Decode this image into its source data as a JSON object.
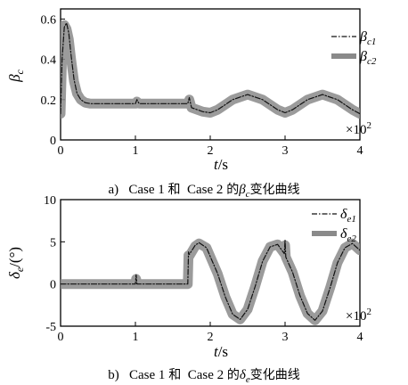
{
  "chart_data": [
    {
      "type": "line",
      "panel": "a",
      "ylabel": "β_c",
      "ylabel_main": "β",
      "ylabel_sub": "c",
      "xlabel": "t/s",
      "xlabel_var": "t",
      "xlabel_unit": "/s",
      "x_multiplier": "×10²",
      "x_multiplier_base": "×10",
      "x_multiplier_exp": "2",
      "xlim": [
        0,
        4
      ],
      "ylim": [
        0,
        0.65
      ],
      "xticks": [
        0,
        1,
        2,
        3,
        4
      ],
      "xtick_labels": [
        "0",
        "1",
        "2",
        "3",
        "4"
      ],
      "yticks": [
        0,
        0.2,
        0.4,
        0.6
      ],
      "ytick_labels": [
        "0",
        "0.2",
        "0.4",
        "0.6"
      ],
      "legend_position": "right",
      "caption": {
        "label": "a)",
        "case1": "Case 1",
        "and": "和",
        "case2": "Case 2",
        "of": "的",
        "symbol": "β",
        "symbol_sub": "c",
        "suffix": "变化曲线"
      },
      "series": [
        {
          "name": "β_c1",
          "name_main": "β",
          "name_sub": "c1",
          "style": "dash-dot",
          "color": "#111111",
          "x": [
            0,
            0.02,
            0.05,
            0.08,
            0.11,
            0.14,
            0.18,
            0.22,
            0.27,
            0.33,
            0.4,
            0.5,
            0.6,
            0.8,
            1.0,
            1.02,
            1.05,
            1.2,
            1.5,
            1.7,
            1.72,
            1.75,
            1.9,
            2.0,
            2.1,
            2.3,
            2.5,
            2.7,
            2.9,
            3.0,
            3.1,
            3.3,
            3.5,
            3.7,
            3.9,
            4.0
          ],
          "y": [
            0.13,
            0.4,
            0.56,
            0.58,
            0.53,
            0.42,
            0.3,
            0.23,
            0.2,
            0.185,
            0.18,
            0.18,
            0.18,
            0.18,
            0.18,
            0.2,
            0.18,
            0.18,
            0.18,
            0.18,
            0.21,
            0.16,
            0.14,
            0.135,
            0.15,
            0.2,
            0.225,
            0.2,
            0.15,
            0.135,
            0.15,
            0.2,
            0.225,
            0.2,
            0.15,
            0.13
          ]
        },
        {
          "name": "β_c2",
          "name_main": "β",
          "name_sub": "c2",
          "style": "thick-band",
          "color": "#8a8a8a",
          "x": [
            0,
            0.02,
            0.05,
            0.08,
            0.11,
            0.14,
            0.18,
            0.22,
            0.27,
            0.33,
            0.4,
            0.5,
            0.6,
            0.8,
            1.0,
            1.02,
            1.05,
            1.2,
            1.5,
            1.7,
            1.72,
            1.75,
            1.9,
            2.0,
            2.1,
            2.3,
            2.5,
            2.7,
            2.9,
            3.0,
            3.1,
            3.3,
            3.5,
            3.7,
            3.9,
            4.0
          ],
          "y": [
            0.13,
            0.42,
            0.57,
            0.55,
            0.5,
            0.4,
            0.29,
            0.23,
            0.2,
            0.185,
            0.18,
            0.18,
            0.18,
            0.18,
            0.18,
            0.19,
            0.18,
            0.18,
            0.18,
            0.18,
            0.2,
            0.16,
            0.14,
            0.135,
            0.15,
            0.2,
            0.225,
            0.2,
            0.15,
            0.135,
            0.15,
            0.2,
            0.225,
            0.2,
            0.15,
            0.13
          ]
        }
      ]
    },
    {
      "type": "line",
      "panel": "b",
      "ylabel": "δ_e/(°)",
      "ylabel_main": "δ",
      "ylabel_sub": "e",
      "ylabel_unit": "/(°)",
      "xlabel": "t/s",
      "xlabel_var": "t",
      "xlabel_unit": "/s",
      "x_multiplier": "×10²",
      "x_multiplier_base": "×10",
      "x_multiplier_exp": "2",
      "xlim": [
        0,
        4
      ],
      "ylim": [
        -5,
        10
      ],
      "xticks": [
        0,
        1,
        2,
        3,
        4
      ],
      "xtick_labels": [
        "0",
        "1",
        "2",
        "3",
        "4"
      ],
      "yticks": [
        -5,
        0,
        5,
        10
      ],
      "ytick_labels": [
        "-5",
        "0",
        "5",
        "10"
      ],
      "legend_position": "top-right",
      "caption": {
        "label": "b)",
        "case1": "Case 1",
        "and": "和",
        "case2": "Case 2",
        "of": "的",
        "symbol": "δ",
        "symbol_sub": "e",
        "suffix": "变化曲线"
      },
      "series": [
        {
          "name": "δ_e1",
          "name_main": "δ",
          "name_sub": "e1",
          "style": "dash-dot",
          "color": "#111111",
          "x": [
            0,
            1.0,
            1.01,
            1.02,
            1.7,
            1.71,
            1.72,
            1.8,
            1.85,
            1.95,
            2.1,
            2.2,
            2.3,
            2.4,
            2.5,
            2.6,
            2.7,
            2.8,
            2.9,
            2.99,
            3.0,
            3.01,
            3.1,
            3.2,
            3.3,
            3.4,
            3.5,
            3.6,
            3.7,
            3.8,
            3.9,
            4.0
          ],
          "y": [
            0,
            0,
            1.1,
            0,
            0,
            3.8,
            3.5,
            4.6,
            4.9,
            4.3,
            1.2,
            -1.5,
            -3.6,
            -4.2,
            -3.0,
            -0.3,
            2.7,
            4.4,
            4.7,
            3.6,
            5.2,
            3.2,
            1.4,
            -1.4,
            -3.5,
            -4.3,
            -3.2,
            -0.5,
            2.5,
            4.3,
            4.8,
            4.0
          ]
        },
        {
          "name": "δ_e2",
          "name_main": "δ",
          "name_sub": "e2",
          "style": "thick-band",
          "color": "#8a8a8a",
          "x": [
            0,
            1.0,
            1.01,
            1.02,
            1.7,
            1.71,
            1.72,
            1.8,
            1.85,
            1.95,
            2.1,
            2.2,
            2.3,
            2.4,
            2.5,
            2.6,
            2.7,
            2.8,
            2.9,
            2.99,
            3.0,
            3.01,
            3.1,
            3.2,
            3.3,
            3.4,
            3.5,
            3.6,
            3.7,
            3.8,
            3.9,
            4.0
          ],
          "y": [
            0,
            0,
            0.6,
            0,
            0,
            3.4,
            3.3,
            4.5,
            4.8,
            4.3,
            1.2,
            -1.5,
            -3.6,
            -4.2,
            -3.0,
            -0.3,
            2.7,
            4.4,
            4.7,
            3.6,
            4.6,
            3.2,
            1.4,
            -1.4,
            -3.5,
            -4.3,
            -3.2,
            -0.5,
            2.5,
            4.3,
            4.8,
            4.0
          ]
        }
      ]
    }
  ]
}
